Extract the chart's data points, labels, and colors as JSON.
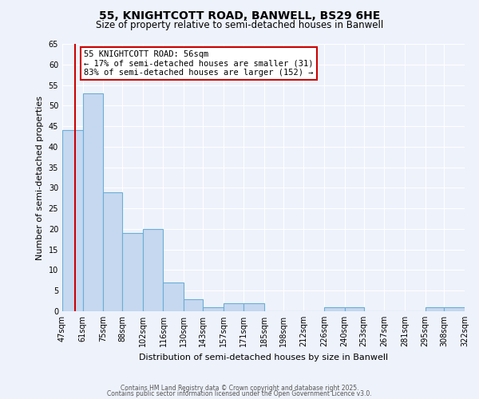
{
  "title_line1": "55, KNIGHTCOTT ROAD, BANWELL, BS29 6HE",
  "title_line2": "Size of property relative to semi-detached houses in Banwell",
  "xlabel": "Distribution of semi-detached houses by size in Banwell",
  "ylabel": "Number of semi-detached properties",
  "bar_labels": [
    "47sqm",
    "61sqm",
    "75sqm",
    "88sqm",
    "102sqm",
    "116sqm",
    "130sqm",
    "143sqm",
    "157sqm",
    "171sqm",
    "185sqm",
    "198sqm",
    "212sqm",
    "226sqm",
    "240sqm",
    "253sqm",
    "267sqm",
    "281sqm",
    "295sqm",
    "308sqm",
    "322sqm"
  ],
  "bar_values": [
    44,
    53,
    29,
    19,
    20,
    7,
    3,
    1,
    2,
    2,
    0,
    0,
    0,
    1,
    1,
    0,
    0,
    0,
    1,
    1,
    0
  ],
  "bar_color": "#c5d8f0",
  "bar_edge_color": "#6baed6",
  "ylim": [
    0,
    65
  ],
  "yticks": [
    0,
    5,
    10,
    15,
    20,
    25,
    30,
    35,
    40,
    45,
    50,
    55,
    60,
    65
  ],
  "property_sqm": 56,
  "property_label": "55 KNIGHTCOTT ROAD: 56sqm",
  "annotation_line1": "← 17% of semi-detached houses are smaller (31)",
  "annotation_line2": "83% of semi-detached houses are larger (152) →",
  "red_line_x": 56,
  "annotation_box_color": "#ffffff",
  "annotation_border_color": "#cc0000",
  "red_line_color": "#cc0000",
  "background_color": "#eef2fb",
  "grid_color": "#ffffff",
  "footer_line1": "Contains HM Land Registry data © Crown copyright and database right 2025.",
  "footer_line2": "Contains public sector information licensed under the Open Government Licence v3.0."
}
